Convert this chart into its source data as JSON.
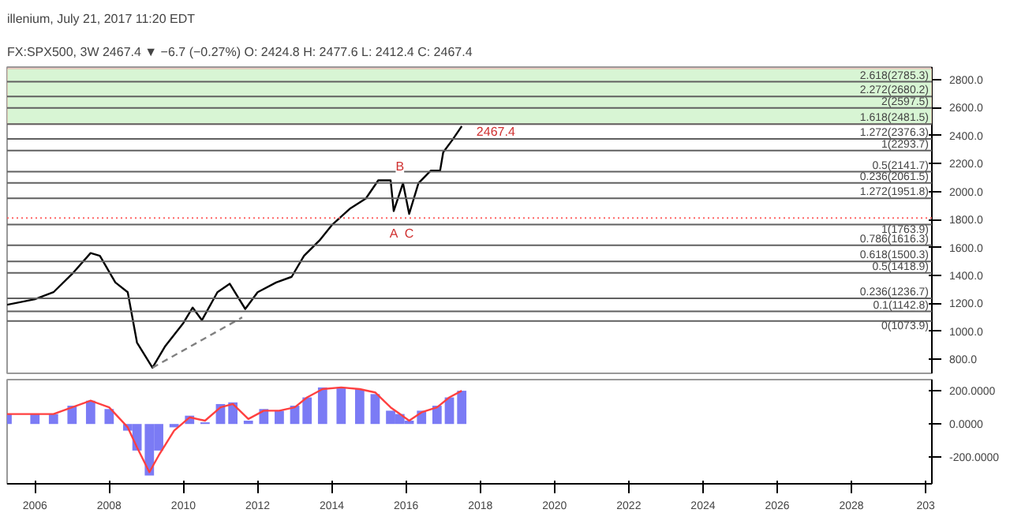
{
  "chart_data": [
    {
      "type": "line",
      "title": "illenium, July 21, 2017 11:20 EDT",
      "subtitle": "FX:SPX500, 3W  2467.4 ▼ −6.7 (−0.27%)  O: 2424.8  H: 2477.6  L: 2412.4  C: 2467.4",
      "xlim": [
        "2005-04",
        "2030-03"
      ],
      "ylim": [
        700,
        2890
      ],
      "yticks": [
        {
          "value": 800,
          "label": "800.0"
        },
        {
          "value": 1000,
          "label": "1000.0"
        },
        {
          "value": 1200,
          "label": "1200.0"
        },
        {
          "value": 1400,
          "label": "1400.0"
        },
        {
          "value": 1600,
          "label": "1600.0"
        },
        {
          "value": 1800,
          "label": "1800.0"
        },
        {
          "value": 2000,
          "label": "2000.0"
        },
        {
          "value": 2200,
          "label": "2200.0"
        },
        {
          "value": 2400,
          "label": "2400.0"
        },
        {
          "value": 2600,
          "label": "2600.0"
        },
        {
          "value": 2800,
          "label": "2800.0"
        }
      ],
      "tick_labels": "y",
      "grid": false,
      "series": [
        {
          "color": "#000000",
          "x": [
            "2005-04",
            "2006-01",
            "2006-07",
            "2007-01",
            "2007-07",
            "2007-10",
            "2008-03",
            "2008-07",
            "2008-10",
            "2009-03",
            "2009-07",
            "2010-01",
            "2010-04",
            "2010-07",
            "2010-12",
            "2011-04",
            "2011-09",
            "2012-01",
            "2012-07",
            "2012-12",
            "2013-04",
            "2013-09",
            "2014-01",
            "2014-07",
            "2014-12",
            "2015-04",
            "2015-08",
            "2015-09",
            "2015-12",
            "2016-02",
            "2016-05",
            "2016-09",
            "2016-12",
            "2017-01",
            "2017-04",
            "2017-07"
          ],
          "values": [
            1190,
            1230,
            1280,
            1410,
            1560,
            1540,
            1350,
            1280,
            920,
            740,
            890,
            1060,
            1170,
            1080,
            1280,
            1340,
            1160,
            1280,
            1350,
            1390,
            1540,
            1650,
            1760,
            1880,
            1950,
            2080,
            2080,
            1860,
            2060,
            1840,
            2060,
            2150,
            2150,
            2280,
            2370,
            2467.4
          ]
        },
        {
          "type": "line",
          "color": "#808080",
          "line_style": "dashed",
          "x": [
            "2009-03",
            "2011-08"
          ],
          "values": [
            740,
            1100
          ]
        }
      ],
      "bands": [
        {
          "axis": "y",
          "from": 2481.5,
          "to": 2880,
          "color": "#d8f5d4"
        }
      ],
      "ref_lines": [
        {
          "axis": "y",
          "value": 2785.3,
          "label": "2.618(2785.3)"
        },
        {
          "axis": "y",
          "value": 2680.2,
          "label": "2.272(2680.2)"
        },
        {
          "axis": "y",
          "value": 2597.5,
          "label": "2(2597.5)"
        },
        {
          "axis": "y",
          "value": 2481.5,
          "label": "1.618(2481.5)"
        },
        {
          "axis": "y",
          "value": 2376.3,
          "label": "1.272(2376.3)"
        },
        {
          "axis": "y",
          "value": 2293.7,
          "label": "1(2293.7)"
        },
        {
          "axis": "y",
          "value": 2141.7,
          "label": "0.5(2141.7)"
        },
        {
          "axis": "y",
          "value": 2061.5,
          "label": "0.236(2061.5)"
        },
        {
          "axis": "y",
          "value": 1951.8,
          "label": "1.272(1951.8)"
        },
        {
          "axis": "y",
          "value": 1763.9,
          "label": "1(1763.9)"
        },
        {
          "axis": "y",
          "value": 1616.3,
          "label": "0.786(1616.3)"
        },
        {
          "axis": "y",
          "value": 1500.3,
          "label": "0.618(1500.3)"
        },
        {
          "axis": "y",
          "value": 1418.9,
          "label": "0.5(1418.9)"
        },
        {
          "axis": "y",
          "value": 1236.7,
          "label": "0.236(1236.7)"
        },
        {
          "axis": "y",
          "value": 1142.8,
          "label": "0.1(1142.8)"
        },
        {
          "axis": "y",
          "value": 1073.9,
          "label": "0(1073.9)"
        },
        {
          "axis": "y",
          "value": 1810,
          "label": null,
          "color": "#ff6666",
          "line_style": "dotted"
        }
      ],
      "annotations": [
        {
          "text": "A",
          "x": "2015-09",
          "y": 1700
        },
        {
          "text": "B",
          "x": "2015-11",
          "y": 2180
        },
        {
          "text": "C",
          "x": "2016-02",
          "y": 1700
        },
        {
          "text": "2467.4",
          "x": "2018-06",
          "y": 2430
        }
      ]
    },
    {
      "type": "bar",
      "xlim": [
        "2005-04",
        "2030-03"
      ],
      "ylim": [
        -360,
        267
      ],
      "yticks": [
        {
          "value": -200,
          "label": "-200.0000"
        },
        {
          "value": 0,
          "label": "0.0000"
        },
        {
          "value": 200,
          "label": "200.0000"
        }
      ],
      "xticks": [
        {
          "value": "2006",
          "label": "2006"
        },
        {
          "value": "2008",
          "label": "2008"
        },
        {
          "value": "2010",
          "label": "2010"
        },
        {
          "value": "2012",
          "label": "2012"
        },
        {
          "value": "2014",
          "label": "2014"
        },
        {
          "value": "2016",
          "label": "2016"
        },
        {
          "value": "2018",
          "label": "2018"
        },
        {
          "value": "2020",
          "label": "2020"
        },
        {
          "value": "2022",
          "label": "2022"
        },
        {
          "value": "2024",
          "label": "2024"
        },
        {
          "value": "2026",
          "label": "2026"
        },
        {
          "value": "2028",
          "label": "2028"
        },
        {
          "value": "2030",
          "label": "203"
        }
      ],
      "grid": false,
      "x": [
        "2005-04",
        "2006-01",
        "2006-07",
        "2007-01",
        "2007-07",
        "2008-01",
        "2008-07",
        "2008-10",
        "2009-02",
        "2009-05",
        "2009-10",
        "2010-03",
        "2010-08",
        "2011-01",
        "2011-05",
        "2011-10",
        "2012-03",
        "2012-08",
        "2013-01",
        "2013-05",
        "2013-10",
        "2014-04",
        "2014-10",
        "2015-03",
        "2015-08",
        "2015-11",
        "2016-02",
        "2016-06",
        "2016-11",
        "2017-03",
        "2017-07"
      ],
      "series": [
        {
          "color": "#7b7bf5",
          "values": [
            60,
            60,
            60,
            110,
            140,
            90,
            -40,
            -160,
            -310,
            -160,
            -20,
            50,
            10,
            120,
            130,
            20,
            90,
            80,
            110,
            160,
            220,
            220,
            210,
            180,
            80,
            60,
            20,
            80,
            110,
            160,
            200
          ]
        },
        {
          "type": "line",
          "color": "#ff4040",
          "values": [
            60,
            60,
            60,
            100,
            140,
            100,
            -20,
            -140,
            -290,
            -190,
            -40,
            40,
            20,
            100,
            120,
            30,
            80,
            80,
            100,
            160,
            210,
            220,
            210,
            190,
            100,
            60,
            20,
            70,
            100,
            160,
            200
          ]
        }
      ]
    }
  ]
}
